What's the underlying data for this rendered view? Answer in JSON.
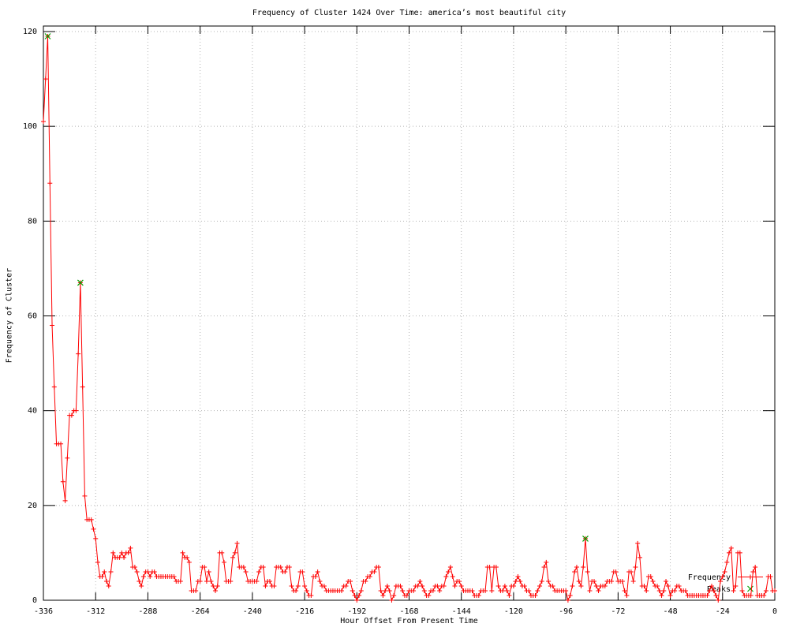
{
  "chart_data": {
    "type": "line",
    "title": "Frequency of Cluster 1424 Over Time: america’s most beautiful city",
    "xlabel": "Hour Offset From Present Time",
    "ylabel": "Frequency of Cluster",
    "xlim": [
      -336,
      0
    ],
    "ylim": [
      0,
      120
    ],
    "x_ticks": [
      -336,
      -312,
      -288,
      -264,
      -240,
      -216,
      -192,
      -168,
      -144,
      -120,
      -96,
      -72,
      -48,
      -24,
      0
    ],
    "y_ticks": [
      0,
      20,
      40,
      60,
      80,
      100,
      120
    ],
    "grid": true,
    "legend_position": "inside-bottom-right",
    "x_start": -336,
    "x_step": 1,
    "series": [
      {
        "name": "Frequency",
        "color": "#ff0000",
        "marker": "plus",
        "style": "linespoints",
        "values": [
          101,
          110,
          119,
          88,
          58,
          45,
          33,
          33,
          33,
          25,
          21,
          30,
          39,
          39,
          40,
          40,
          52,
          67,
          45,
          22,
          17,
          17,
          17,
          15,
          13,
          8,
          5,
          5,
          6,
          4,
          3,
          6,
          10,
          9,
          9,
          9,
          10,
          9,
          10,
          10,
          11,
          7,
          7,
          6,
          4,
          3,
          5,
          6,
          6,
          5,
          6,
          6,
          5,
          5,
          5,
          5,
          5,
          5,
          5,
          5,
          5,
          4,
          4,
          4,
          10,
          9,
          9,
          8,
          2,
          2,
          2,
          4,
          4,
          7,
          7,
          4,
          6,
          4,
          3,
          2,
          3,
          10,
          10,
          8,
          4,
          4,
          4,
          9,
          10,
          12,
          7,
          7,
          7,
          6,
          4,
          4,
          4,
          4,
          4,
          6,
          7,
          7,
          3,
          4,
          4,
          3,
          3,
          7,
          7,
          7,
          6,
          6,
          7,
          7,
          3,
          2,
          2,
          3,
          6,
          6,
          3,
          2,
          1,
          1,
          5,
          5,
          6,
          4,
          3,
          3,
          2,
          2,
          2,
          2,
          2,
          2,
          2,
          2,
          3,
          3,
          4,
          4,
          2,
          1,
          0,
          1,
          2,
          4,
          4,
          5,
          5,
          6,
          6,
          7,
          7,
          2,
          1,
          2,
          3,
          2,
          0,
          1,
          3,
          3,
          3,
          2,
          1,
          1,
          2,
          2,
          2,
          3,
          3,
          4,
          3,
          2,
          1,
          1,
          2,
          2,
          3,
          3,
          2,
          3,
          3,
          5,
          6,
          7,
          5,
          3,
          4,
          4,
          3,
          2,
          2,
          2,
          2,
          2,
          1,
          1,
          1,
          2,
          2,
          2,
          7,
          7,
          2,
          7,
          7,
          3,
          2,
          2,
          3,
          2,
          1,
          3,
          3,
          4,
          5,
          4,
          3,
          3,
          2,
          2,
          1,
          1,
          1,
          2,
          3,
          4,
          7,
          8,
          4,
          3,
          3,
          2,
          2,
          2,
          2,
          2,
          2,
          0,
          1,
          3,
          6,
          7,
          4,
          3,
          7,
          13,
          6,
          2,
          4,
          4,
          3,
          2,
          3,
          3,
          3,
          4,
          4,
          4,
          6,
          6,
          4,
          4,
          4,
          2,
          1,
          6,
          6,
          4,
          7,
          12,
          9,
          3,
          3,
          2,
          5,
          5,
          4,
          3,
          3,
          2,
          1,
          2,
          4,
          3,
          1,
          2,
          2,
          3,
          3,
          2,
          2,
          2,
          1,
          1,
          1,
          1,
          1,
          1,
          1,
          1,
          1,
          1,
          2,
          3,
          2,
          1,
          0,
          4,
          5,
          6,
          8,
          10,
          11,
          2,
          3,
          10,
          10,
          2,
          1,
          1,
          1,
          1,
          6,
          7,
          1,
          1,
          1,
          1,
          2,
          5,
          5,
          2,
          2
        ]
      },
      {
        "name": "Peaks",
        "color": "#00a000",
        "marker": "cross",
        "style": "points",
        "points": [
          {
            "x": -334,
            "y": 119
          },
          {
            "x": -319,
            "y": 67
          },
          {
            "x": -87,
            "y": 13
          }
        ]
      }
    ]
  },
  "colors": {
    "line": "#ff0000",
    "peaks": "#00a000",
    "grid": "#b4b4b4",
    "axis": "#000000",
    "background": "#ffffff"
  }
}
